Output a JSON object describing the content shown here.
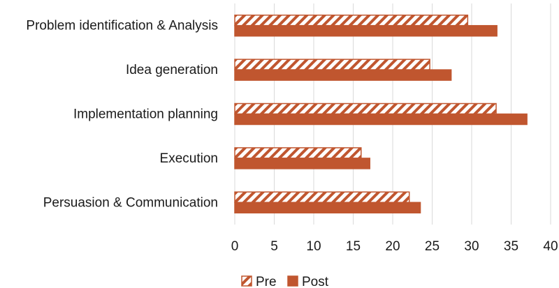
{
  "chart_data": {
    "type": "bar",
    "orientation": "horizontal",
    "categories": [
      "Problem identification & Analysis",
      "Idea generation",
      "Implementation planning",
      "Execution",
      "Persuasion & Communication"
    ],
    "series": [
      {
        "name": "Pre",
        "values": [
          29.5,
          24.7,
          33.1,
          16.0,
          22.1
        ],
        "pattern": "diagonal-hatch",
        "color": "#c0562f"
      },
      {
        "name": "Post",
        "values": [
          33.2,
          27.4,
          37.0,
          17.1,
          23.5
        ],
        "pattern": "solid",
        "color": "#c0562f"
      }
    ],
    "xlim": [
      0,
      40
    ],
    "xticks": [
      0,
      5,
      10,
      15,
      20,
      25,
      30,
      35,
      40
    ],
    "grid": "vertical",
    "legend": "bottom",
    "title": "",
    "xlabel": "",
    "ylabel": ""
  }
}
